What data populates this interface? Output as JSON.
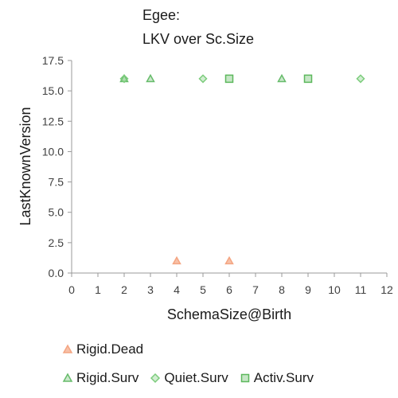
{
  "chart_data": {
    "type": "scatter",
    "title_lines": [
      "Egee:",
      "LKV over Sc.Size"
    ],
    "xlabel": "SchemaSize@Birth",
    "ylabel": "LastKnownVersion",
    "xlim": [
      0,
      12
    ],
    "ylim": [
      0,
      17.5
    ],
    "x_ticks": [
      0,
      1,
      2,
      3,
      4,
      5,
      6,
      7,
      8,
      9,
      10,
      11,
      12
    ],
    "y_ticks": [
      "0.0",
      "2.5",
      "5.0",
      "7.5",
      "10.0",
      "12.5",
      "15.0",
      "17.5"
    ],
    "grid": false,
    "legend_position": "bottom-left",
    "series": [
      {
        "name": "Rigid.Dead",
        "marker": "triangle",
        "color": "#f4a582",
        "points": [
          {
            "x": 4,
            "y": 1
          },
          {
            "x": 6,
            "y": 1
          }
        ]
      },
      {
        "name": "Rigid.Surv",
        "marker": "triangle",
        "color": "#66bb6a",
        "points": [
          {
            "x": 2,
            "y": 16
          },
          {
            "x": 3,
            "y": 16
          },
          {
            "x": 8,
            "y": 16
          }
        ]
      },
      {
        "name": "Quiet.Surv",
        "marker": "diamond",
        "color": "#7ccc7c",
        "points": [
          {
            "x": 2,
            "y": 16
          },
          {
            "x": 5,
            "y": 16
          },
          {
            "x": 11,
            "y": 16
          }
        ]
      },
      {
        "name": "Activ.Surv",
        "marker": "square",
        "color": "#5cb85c",
        "points": [
          {
            "x": 6,
            "y": 16
          },
          {
            "x": 9,
            "y": 16
          }
        ]
      }
    ]
  }
}
